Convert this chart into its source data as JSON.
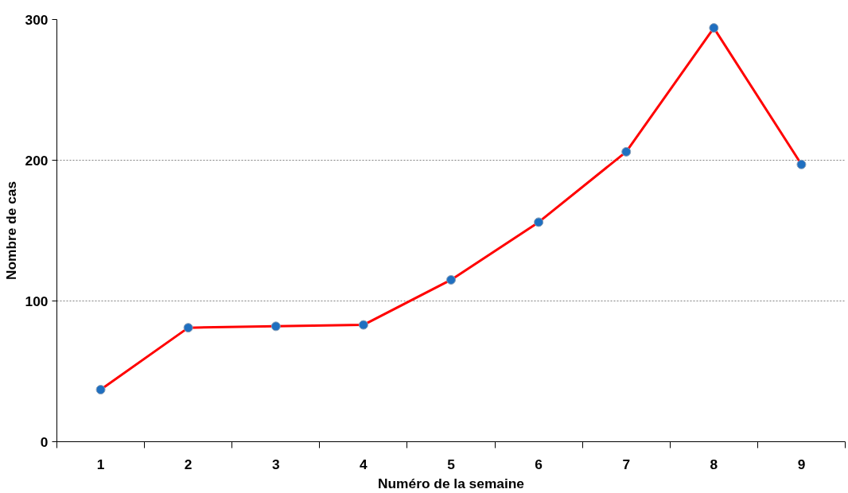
{
  "chart_data": {
    "type": "line",
    "xlabel": "Numéro de la semaine",
    "ylabel": "Nombre de cas",
    "categories": [
      "1",
      "2",
      "3",
      "4",
      "5",
      "6",
      "7",
      "8",
      "9"
    ],
    "series": [
      {
        "color": "#ff0000",
        "values": [
          37,
          81,
          82,
          83,
          115,
          156,
          206,
          294,
          197
        ]
      }
    ],
    "ylim": [
      0,
      300
    ],
    "yticks": [
      0,
      100,
      200,
      300
    ],
    "grid": "y",
    "marker": "circle",
    "line_style": "solid"
  }
}
